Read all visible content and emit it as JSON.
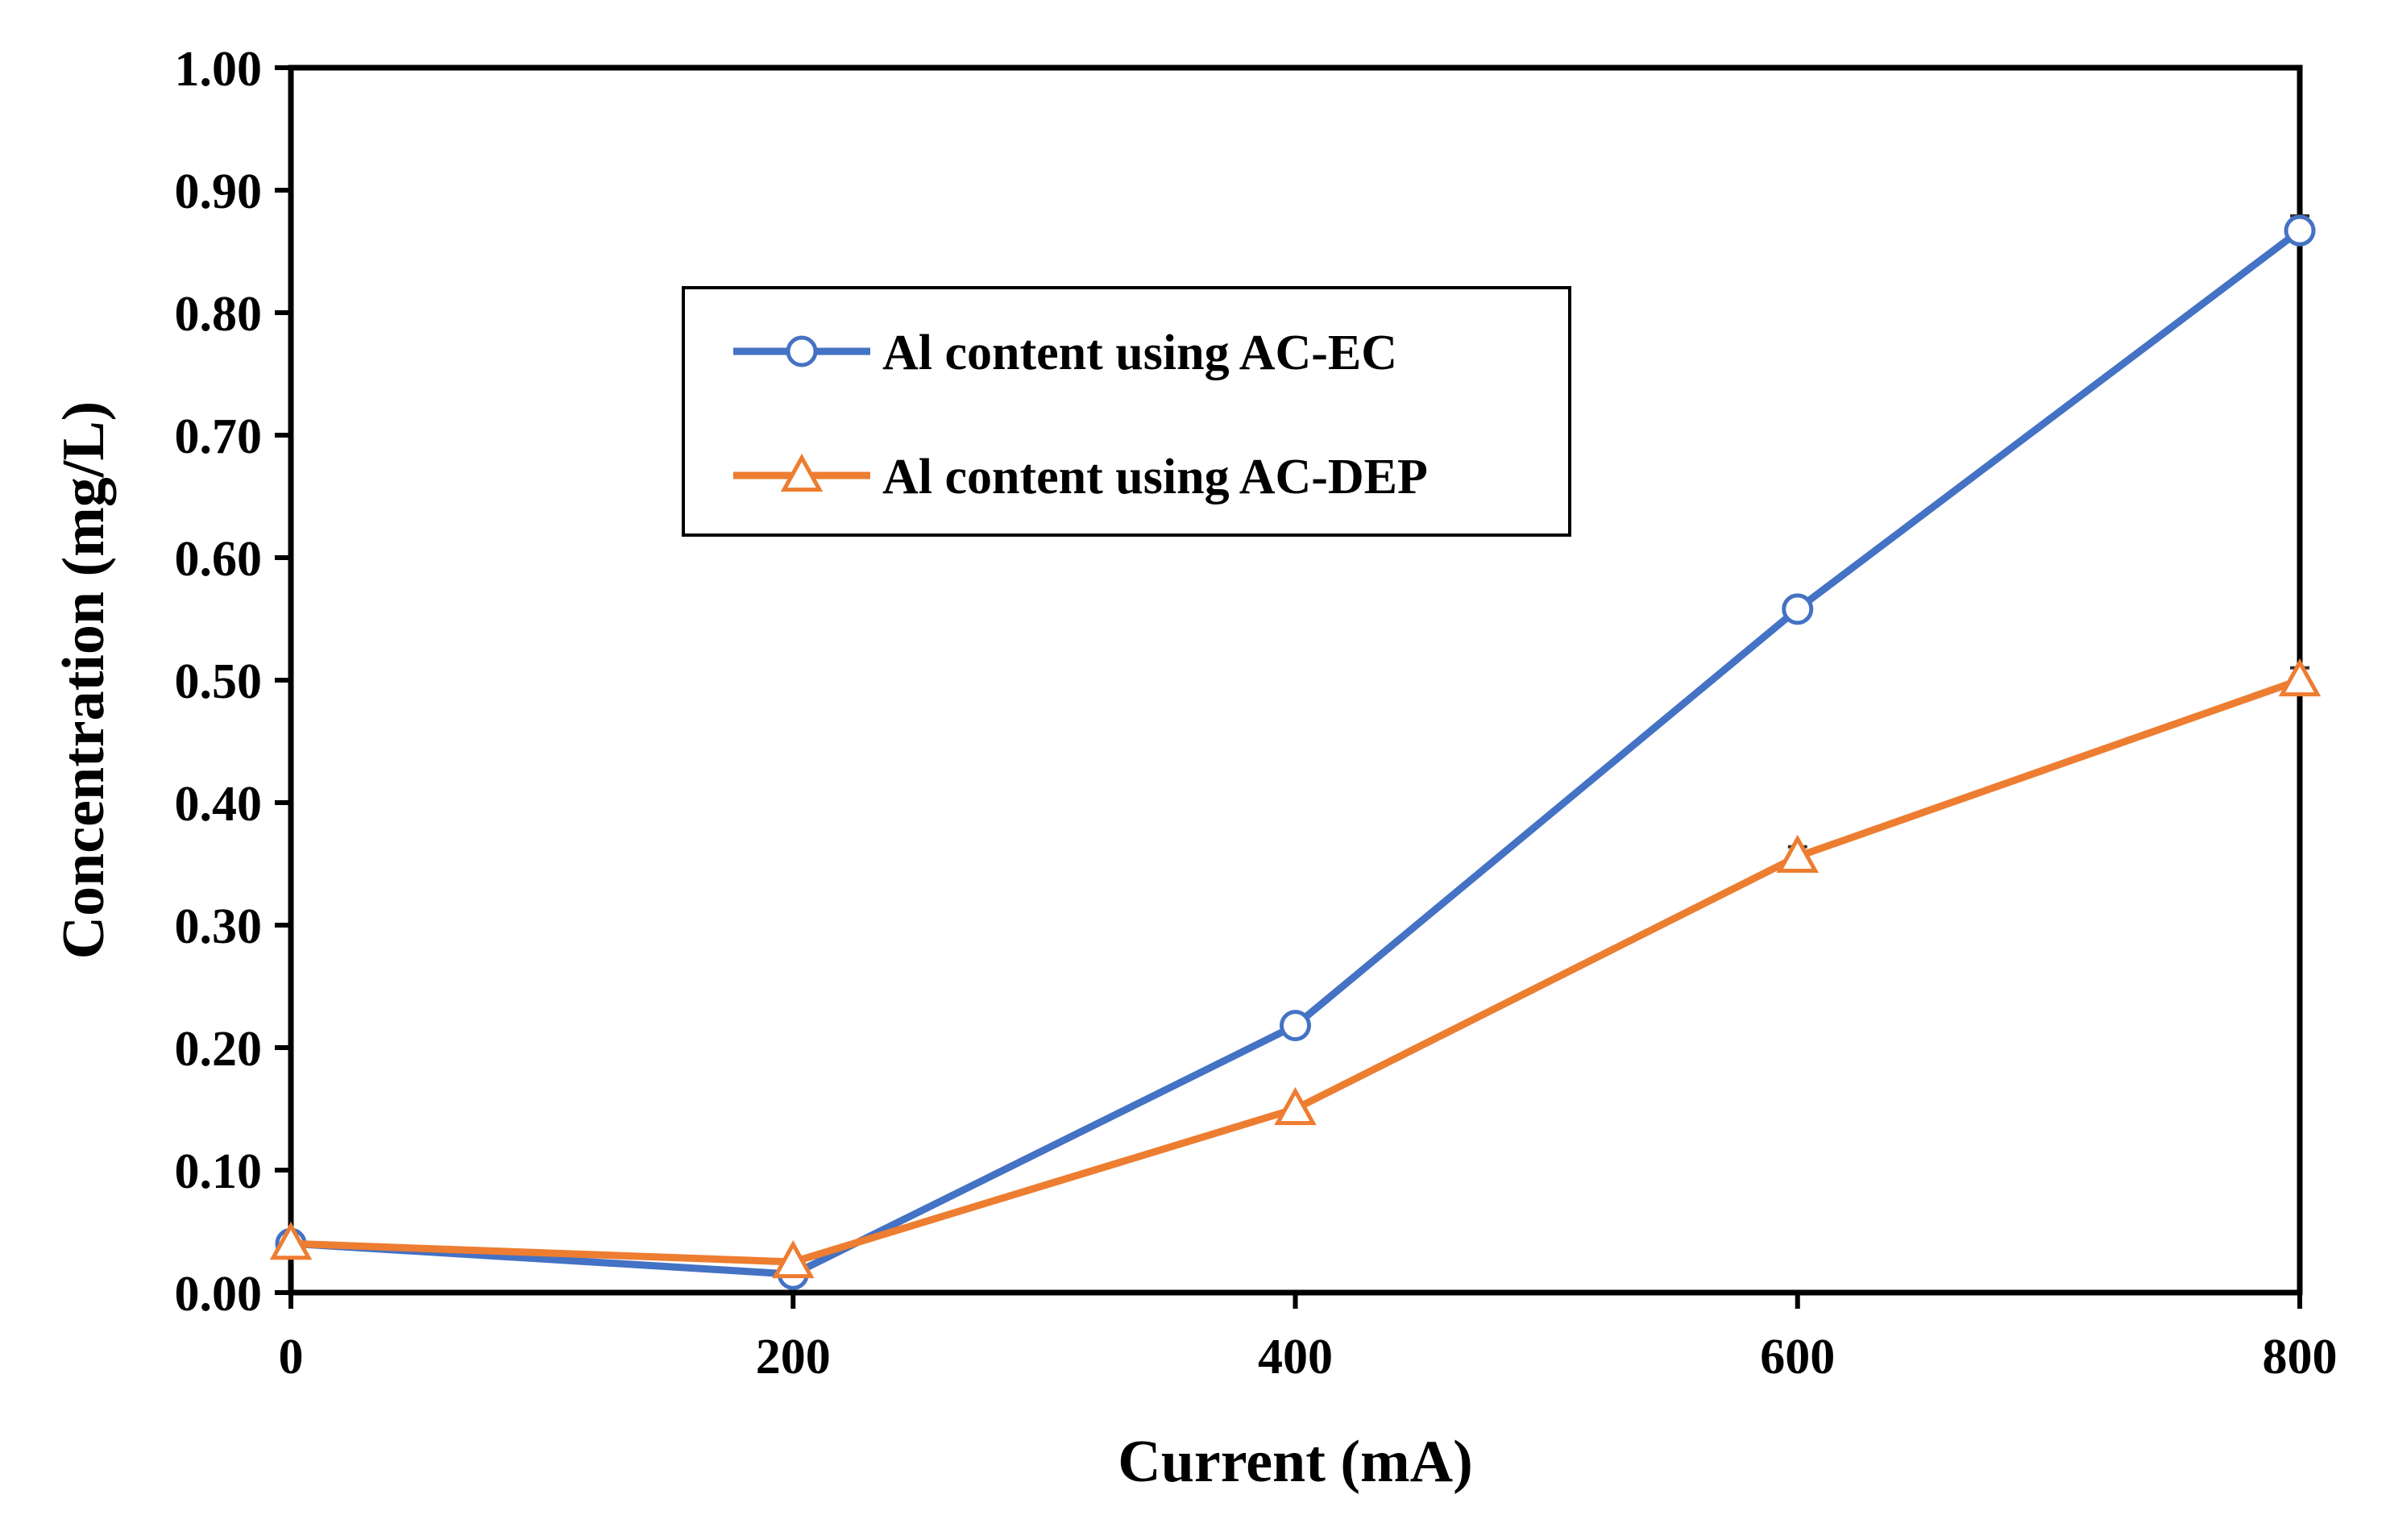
{
  "chart_data": {
    "type": "line",
    "title": "",
    "xlabel": "Current (mA)",
    "ylabel": "Concentration (mg/L)",
    "x": [
      0,
      200,
      400,
      600,
      800
    ],
    "xlim": [
      0,
      800
    ],
    "ylim": [
      0,
      1.0
    ],
    "x_ticks": [
      "0",
      "200",
      "400",
      "600",
      "800"
    ],
    "y_ticks": [
      "0.00",
      "0.10",
      "0.20",
      "0.30",
      "0.40",
      "0.50",
      "0.60",
      "0.70",
      "0.80",
      "0.90",
      "1.00"
    ],
    "grid": false,
    "legend_position": "upper-left-center, boxed",
    "series": [
      {
        "name": "Al content using AC-EC",
        "color": "#4472C4",
        "marker": "circle",
        "values": [
          0.04,
          0.015,
          0.218,
          0.558,
          0.867
        ],
        "error": [
          0,
          0,
          0,
          0,
          0.012
        ]
      },
      {
        "name": "Al content using AC-DEP",
        "color": "#ED7D31",
        "marker": "triangle",
        "values": [
          0.04,
          0.025,
          0.15,
          0.356,
          0.5
        ],
        "error": [
          0,
          0,
          0,
          0.008,
          0.01
        ]
      }
    ]
  }
}
